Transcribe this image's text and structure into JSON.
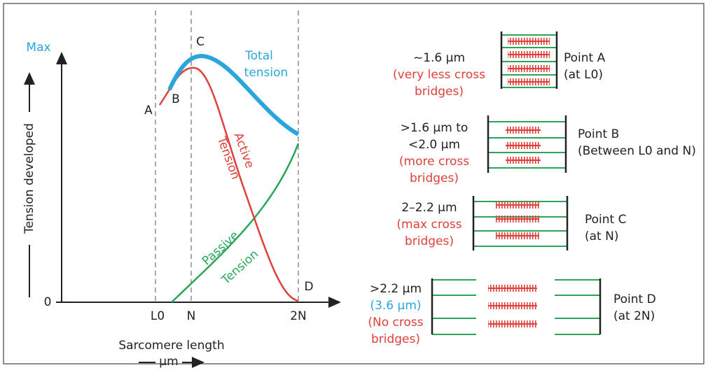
{
  "graph": {
    "y_axis_label": "Tension developed",
    "y_max": "Max",
    "y_zero": "0",
    "x_ticks": [
      "L0",
      "N",
      "2N"
    ],
    "x_axis_label": "Sarcomere length",
    "x_unit": "μm",
    "points": [
      "A",
      "B",
      "C",
      "D"
    ],
    "total_label": [
      "Total",
      "tension"
    ],
    "active_label": [
      "Active",
      "Tension"
    ],
    "passive_label": [
      "Passive",
      "Tension"
    ]
  },
  "sarcomeres": [
    {
      "length": [
        "~1.6 μm"
      ],
      "note": [
        "(very less cross",
        "bridges)"
      ],
      "point": [
        "Point A",
        "(at L0)"
      ]
    },
    {
      "length": [
        ">1.6 μm to",
        "<2.0 μm"
      ],
      "note": [
        "(more cross",
        "bridges)"
      ],
      "point": [
        "Point B",
        "(Between L0 and N)"
      ]
    },
    {
      "length": [
        "2–2.2 μm"
      ],
      "note": [
        "(max cross",
        "bridges)"
      ],
      "point": [
        "Point C",
        "(at N)"
      ]
    },
    {
      "length": [
        ">2.2 μm",
        "(3.6 μm)"
      ],
      "note": [
        "(No cross",
        "bridges)"
      ],
      "point": [
        "Point D",
        "(at 2N)"
      ]
    }
  ]
}
